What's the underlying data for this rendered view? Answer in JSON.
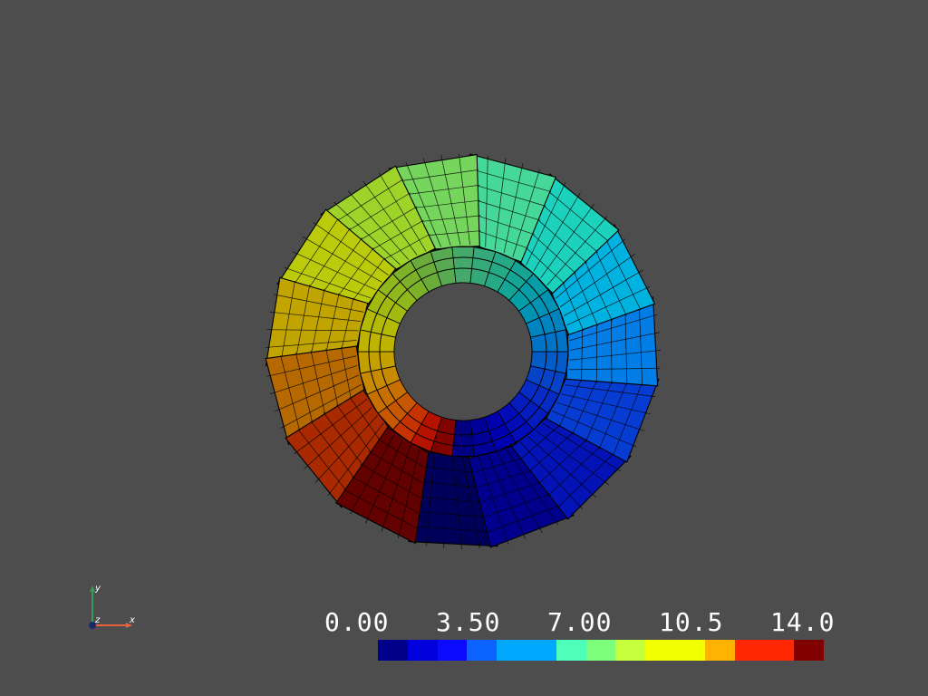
{
  "scalar_bar": {
    "tick_labels": [
      "0.00",
      "3.50",
      "7.00",
      "10.5",
      "14.0"
    ],
    "range": [
      0,
      14
    ],
    "colors": [
      "#00008b",
      "#0000dd",
      "#0a0aff",
      "#0b63ff",
      "#00a8ff",
      "#00a8ff",
      "#4dffb8",
      "#7cff7a",
      "#c6ff3b",
      "#f2ff00",
      "#f2ff00",
      "#ffb300",
      "#ff2800",
      "#ff2800",
      "#800000"
    ]
  },
  "axes": {
    "x_label": "x",
    "y_label": "y",
    "z_label": "z",
    "x_color": "#e8603c",
    "y_color": "#3a9a5a",
    "z_color": "#1c2a6b"
  },
  "mesh": {
    "blade_count": 15,
    "blade_scalars": [
      0,
      1,
      2,
      3,
      4,
      5,
      6,
      7,
      8,
      9,
      10,
      11,
      12,
      13,
      14
    ],
    "background": "#4d4d4d",
    "edge_color": "#000000"
  }
}
